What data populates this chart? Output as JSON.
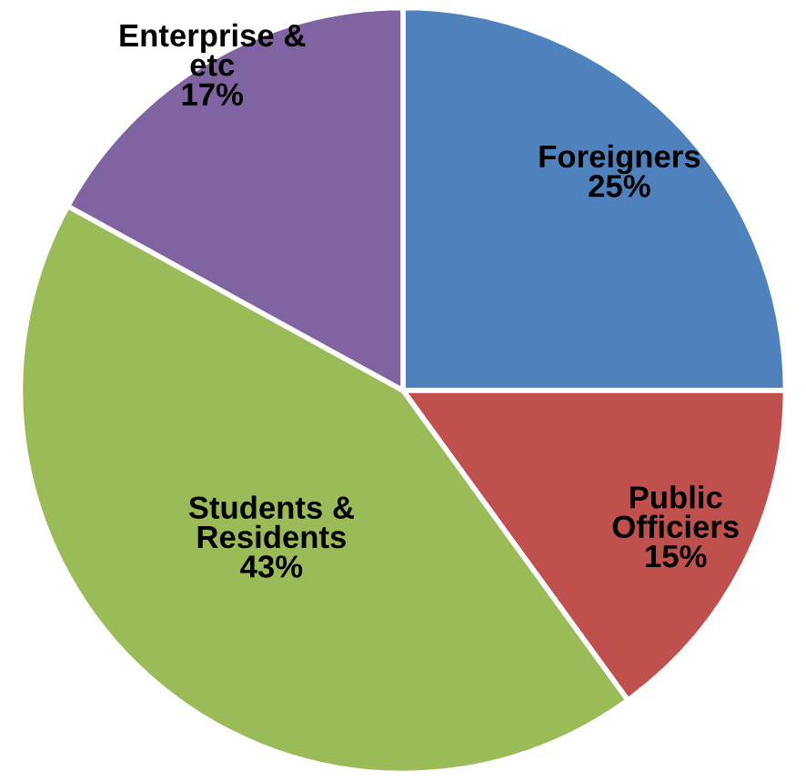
{
  "chart_data": {
    "type": "pie",
    "categories": [
      "Foreigners",
      "Public\nOfficiers",
      "Students &\nResidents",
      "Enterprise &\netc"
    ],
    "values": [
      25,
      15,
      43,
      17
    ],
    "value_labels": [
      "25%",
      "15%",
      "43%",
      "17%"
    ],
    "colors": [
      "#4f81bd",
      "#c0504d",
      "#9bbb59",
      "#8064a2"
    ],
    "legend": false
  }
}
